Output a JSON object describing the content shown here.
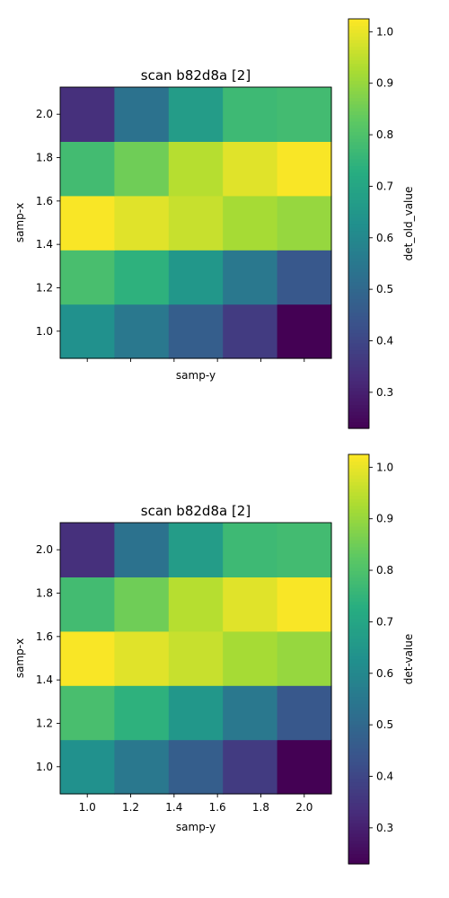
{
  "colormap": "viridis",
  "chart_data": [
    {
      "type": "heatmap",
      "title": "scan b82d8a [2]",
      "xlabel": "samp-y",
      "ylabel": "samp-x",
      "x": [
        1.0,
        1.25,
        1.5,
        1.75,
        2.0
      ],
      "y": [
        1.0,
        1.25,
        1.5,
        1.75,
        2.0
      ],
      "x_ticks": [
        "1.0",
        "1.2",
        "1.4",
        "1.6",
        "1.8",
        "2.0"
      ],
      "x_tick_labels_visible": false,
      "y_ticks": [
        "1.0",
        "1.2",
        "1.4",
        "1.6",
        "1.8",
        "2.0"
      ],
      "xlim": [
        0.875,
        2.125
      ],
      "ylim": [
        0.875,
        2.125
      ],
      "values": [
        [
          0.63,
          0.55,
          0.47,
          0.37,
          0.23
        ],
        [
          0.79,
          0.74,
          0.65,
          0.55,
          0.45
        ],
        [
          1.02,
          0.99,
          0.96,
          0.92,
          0.9
        ],
        [
          0.78,
          0.85,
          0.94,
          0.99,
          1.02
        ],
        [
          0.34,
          0.53,
          0.67,
          0.77,
          0.78
        ]
      ],
      "colorbar": {
        "label": "det_old_value",
        "range": [
          0.23,
          1.025
        ],
        "ticks": [
          "0.3",
          "0.4",
          "0.5",
          "0.6",
          "0.7",
          "0.8",
          "0.9",
          "1.0"
        ]
      }
    },
    {
      "type": "heatmap",
      "title": "scan b82d8a [2]",
      "xlabel": "samp-y",
      "ylabel": "samp-x",
      "x": [
        1.0,
        1.25,
        1.5,
        1.75,
        2.0
      ],
      "y": [
        1.0,
        1.25,
        1.5,
        1.75,
        2.0
      ],
      "x_ticks": [
        "1.0",
        "1.2",
        "1.4",
        "1.6",
        "1.8",
        "2.0"
      ],
      "x_tick_labels_visible": true,
      "y_ticks": [
        "1.0",
        "1.2",
        "1.4",
        "1.6",
        "1.8",
        "2.0"
      ],
      "xlim": [
        0.875,
        2.125
      ],
      "ylim": [
        0.875,
        2.125
      ],
      "values": [
        [
          0.63,
          0.55,
          0.47,
          0.37,
          0.23
        ],
        [
          0.79,
          0.74,
          0.65,
          0.55,
          0.45
        ],
        [
          1.02,
          0.99,
          0.96,
          0.92,
          0.9
        ],
        [
          0.78,
          0.85,
          0.94,
          0.99,
          1.02
        ],
        [
          0.34,
          0.53,
          0.67,
          0.77,
          0.78
        ]
      ],
      "colorbar": {
        "label": "det-value",
        "range": [
          0.23,
          1.025
        ],
        "ticks": [
          "0.3",
          "0.4",
          "0.5",
          "0.6",
          "0.7",
          "0.8",
          "0.9",
          "1.0"
        ]
      }
    }
  ]
}
